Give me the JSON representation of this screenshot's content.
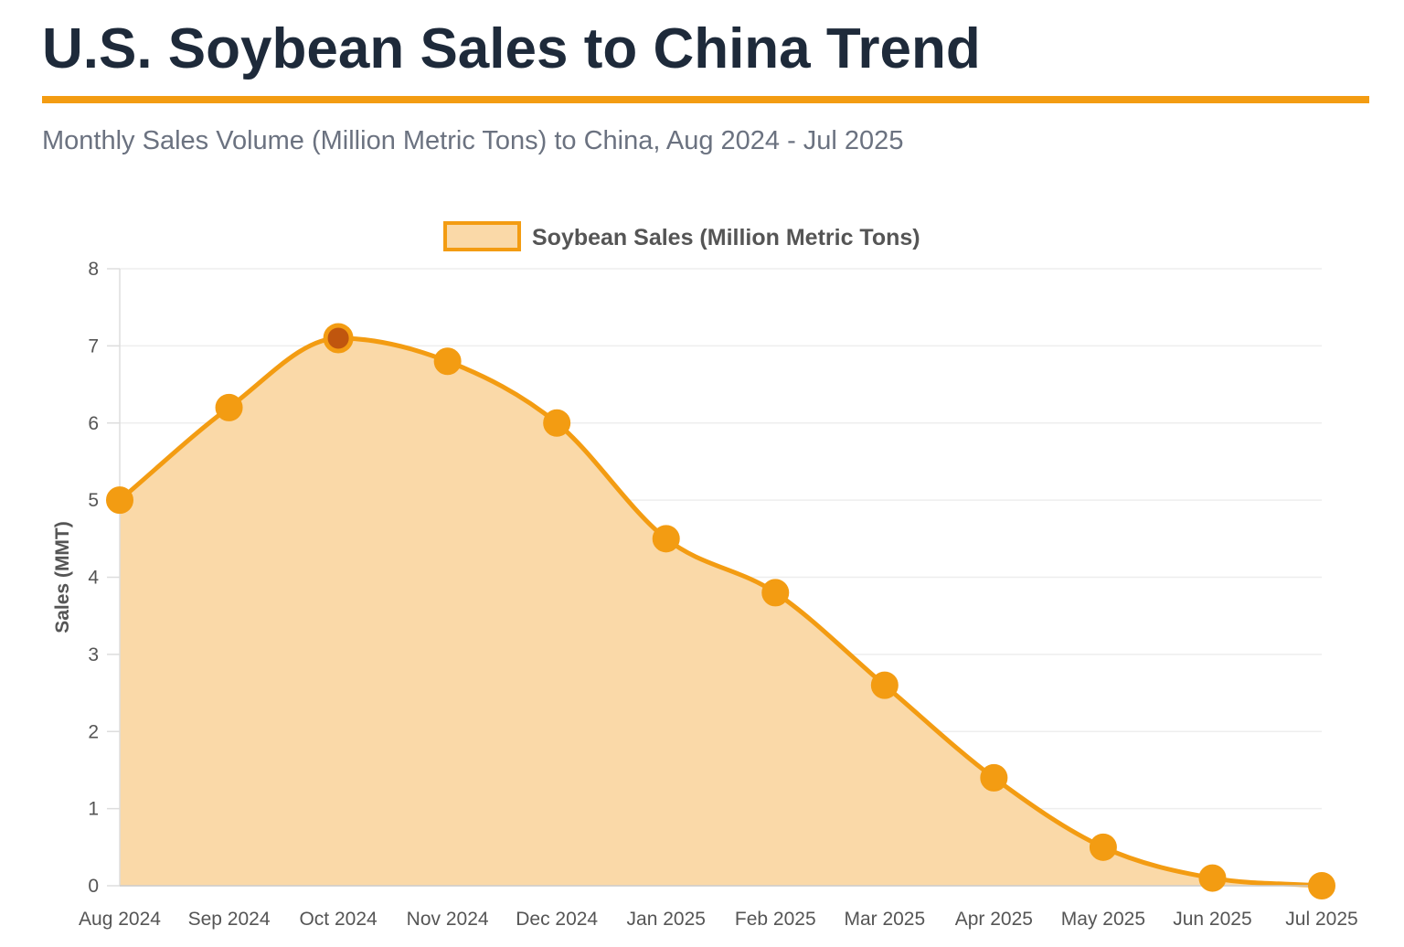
{
  "header": {
    "title": "U.S. Soybean Sales to China Trend",
    "subtitle": "Monthly Sales Volume (Million Metric Tons) to China, Aug 2024 - Jul 2025"
  },
  "colors": {
    "accent": "#f39c12",
    "fill": "#fad9a8",
    "highlight_point": "#c0560e",
    "title_text": "#1e2a3a",
    "subtitle_text": "#6b7280",
    "grid": "#eeeeee"
  },
  "chart_data": {
    "type": "area",
    "title": "",
    "xlabel": "",
    "ylabel": "Sales (MMT)",
    "ylim": [
      0,
      8
    ],
    "yticks": [
      0,
      1,
      2,
      3,
      4,
      5,
      6,
      7,
      8
    ],
    "grid": true,
    "legend_position": "top-center",
    "categories": [
      "Aug 2024",
      "Sep 2024",
      "Oct 2024",
      "Nov 2024",
      "Dec 2024",
      "Jan 2025",
      "Feb 2025",
      "Mar 2025",
      "Apr 2025",
      "May 2025",
      "Jun 2025",
      "Jul 2025"
    ],
    "series": [
      {
        "name": "Soybean Sales (Million Metric Tons)",
        "values": [
          5.0,
          6.2,
          7.1,
          6.8,
          6.0,
          4.5,
          3.8,
          2.6,
          1.4,
          0.5,
          0.1,
          0.0
        ],
        "highlighted_category": "Oct 2024"
      }
    ]
  }
}
